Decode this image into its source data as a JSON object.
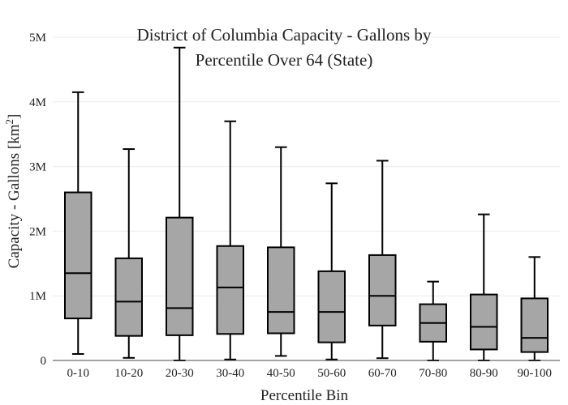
{
  "chart_data": {
    "type": "box",
    "title_lines": [
      "District of Columbia Capacity - Gallons by",
      "Percentile Over 64 (State)"
    ],
    "xlabel": "Percentile Bin",
    "ylabel_main": "Capacity - Gallons  [km",
    "ylabel_sup": "2",
    "ylabel_end": "]",
    "ylim": [
      0,
      5000000
    ],
    "yticks": [
      {
        "value": 0,
        "label": "0"
      },
      {
        "value": 1000000,
        "label": "1M"
      },
      {
        "value": 2000000,
        "label": "2M"
      },
      {
        "value": 3000000,
        "label": "3M"
      },
      {
        "value": 4000000,
        "label": "4M"
      },
      {
        "value": 5000000,
        "label": "5M"
      }
    ],
    "grid": true,
    "box_color": "#a6a6a6",
    "line_color": "#000000",
    "categories": [
      "0-10",
      "10-20",
      "20-30",
      "30-40",
      "40-50",
      "50-60",
      "60-70",
      "70-80",
      "80-90",
      "90-100"
    ],
    "boxes": [
      {
        "min": 100000,
        "q1": 650000,
        "median": 1350000,
        "q3": 2600000,
        "max": 4150000
      },
      {
        "min": 40000,
        "q1": 380000,
        "median": 910000,
        "q3": 1580000,
        "max": 3270000
      },
      {
        "min": 0,
        "q1": 390000,
        "median": 810000,
        "q3": 2210000,
        "max": 4840000
      },
      {
        "min": 15000,
        "q1": 410000,
        "median": 1130000,
        "q3": 1770000,
        "max": 3700000
      },
      {
        "min": 70000,
        "q1": 420000,
        "median": 750000,
        "q3": 1750000,
        "max": 3300000
      },
      {
        "min": 15000,
        "q1": 280000,
        "median": 750000,
        "q3": 1380000,
        "max": 2740000
      },
      {
        "min": 35000,
        "q1": 540000,
        "median": 1000000,
        "q3": 1630000,
        "max": 3090000
      },
      {
        "min": 0,
        "q1": 290000,
        "median": 580000,
        "q3": 870000,
        "max": 1220000
      },
      {
        "min": 0,
        "q1": 170000,
        "median": 520000,
        "q3": 1020000,
        "max": 2260000
      },
      {
        "min": 0,
        "q1": 130000,
        "median": 350000,
        "q3": 960000,
        "max": 1600000
      }
    ]
  }
}
